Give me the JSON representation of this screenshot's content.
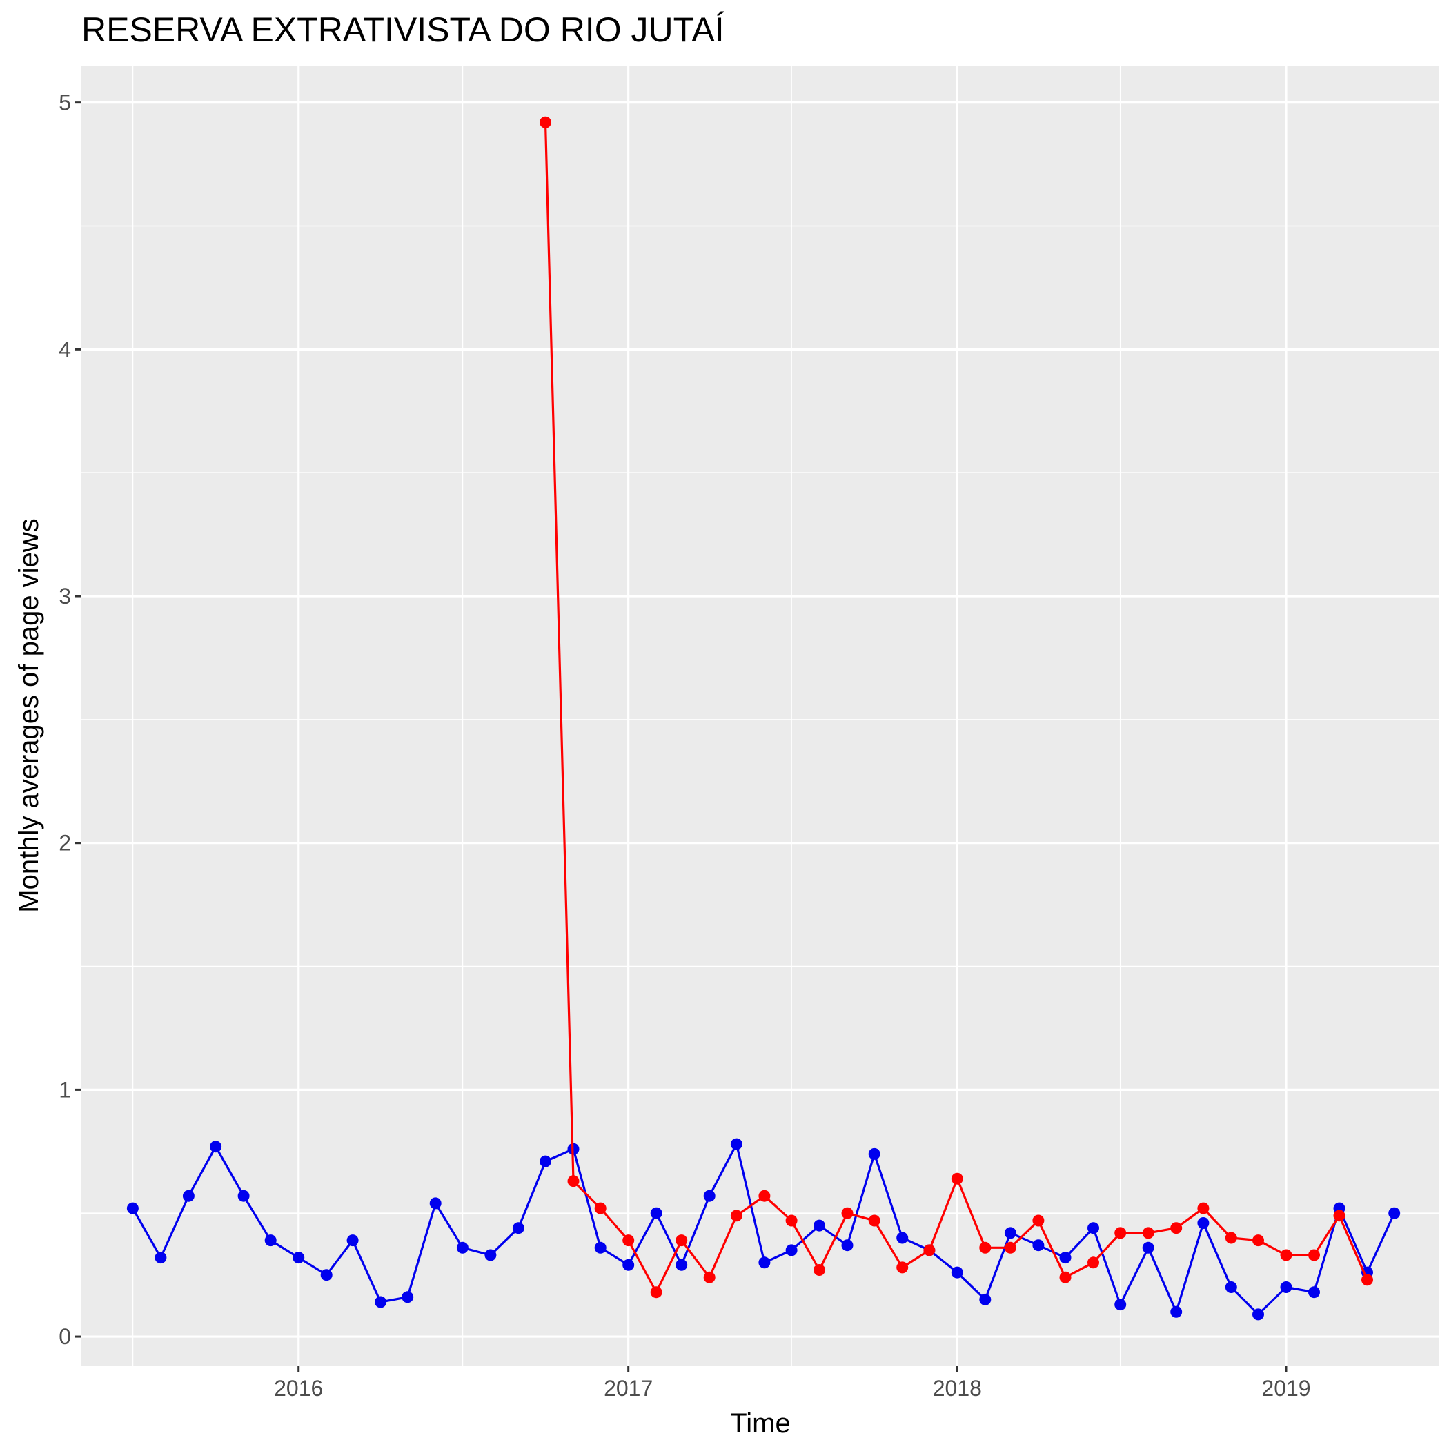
{
  "chart_data": {
    "type": "line",
    "title": "RESERVA EXTRATIVISTA DO RIO JUTAÍ",
    "xlabel": "Time",
    "ylabel": "Monthly averages of page views",
    "x_ticks": [
      "2016",
      "2017",
      "2018",
      "2019"
    ],
    "y_ticks": [
      "0",
      "1",
      "2",
      "3",
      "4",
      "5"
    ],
    "ylim": [
      -0.12,
      5.15
    ],
    "xlim": [
      "2015-05-05",
      "2019-06-20"
    ],
    "grid": true,
    "legend": "none",
    "series": [
      {
        "color": "#0000ee",
        "x": [
          "2015-07-01",
          "2015-08-01",
          "2015-09-01",
          "2015-10-01",
          "2015-11-01",
          "2015-12-01",
          "2016-01-01",
          "2016-02-01",
          "2016-03-01",
          "2016-04-01",
          "2016-05-01",
          "2016-06-01",
          "2016-07-01",
          "2016-08-01",
          "2016-09-01",
          "2016-10-01",
          "2016-11-01",
          "2016-12-01",
          "2017-01-01",
          "2017-02-01",
          "2017-03-01",
          "2017-04-01",
          "2017-05-01",
          "2017-06-01",
          "2017-07-01",
          "2017-08-01",
          "2017-09-01",
          "2017-10-01",
          "2017-11-01",
          "2017-12-01",
          "2018-01-01",
          "2018-02-01",
          "2018-03-01",
          "2018-04-01",
          "2018-05-01",
          "2018-06-01",
          "2018-07-01",
          "2018-08-01",
          "2018-09-01",
          "2018-10-01",
          "2018-11-01",
          "2018-12-01",
          "2019-01-01",
          "2019-02-01",
          "2019-03-01",
          "2019-04-01",
          "2019-05-01"
        ],
        "values": [
          0.52,
          0.32,
          0.57,
          0.77,
          0.57,
          0.39,
          0.32,
          0.25,
          0.39,
          0.14,
          0.16,
          0.54,
          0.36,
          0.33,
          0.44,
          0.71,
          0.76,
          0.36,
          0.29,
          0.5,
          0.29,
          0.57,
          0.78,
          0.3,
          0.35,
          0.45,
          0.37,
          0.74,
          0.4,
          0.35,
          0.26,
          0.15,
          0.42,
          0.37,
          0.32,
          0.44,
          0.13,
          0.36,
          0.1,
          0.46,
          0.2,
          0.09,
          0.2,
          0.18,
          0.52,
          0.26,
          0.5
        ]
      },
      {
        "color": "#ff0000",
        "x": [
          "2016-10-01",
          "2016-11-01",
          "2016-12-01",
          "2017-01-01",
          "2017-02-01",
          "2017-03-01",
          "2017-04-01",
          "2017-05-01",
          "2017-06-01",
          "2017-07-01",
          "2017-08-01",
          "2017-09-01",
          "2017-10-01",
          "2017-11-01",
          "2017-12-01",
          "2018-01-01",
          "2018-02-01",
          "2018-03-01",
          "2018-04-01",
          "2018-05-01",
          "2018-06-01",
          "2018-07-01",
          "2018-08-01",
          "2018-09-01",
          "2018-10-01",
          "2018-11-01",
          "2018-12-01",
          "2019-01-01",
          "2019-02-01",
          "2019-03-01",
          "2019-04-01"
        ],
        "values": [
          4.92,
          0.63,
          0.52,
          0.39,
          0.18,
          0.39,
          0.24,
          0.49,
          0.57,
          0.47,
          0.27,
          0.5,
          0.47,
          0.28,
          0.35,
          0.64,
          0.36,
          0.36,
          0.47,
          0.24,
          0.3,
          0.42,
          0.42,
          0.44,
          0.52,
          0.4,
          0.39,
          0.33,
          0.33,
          0.49,
          0.23
        ]
      }
    ]
  }
}
